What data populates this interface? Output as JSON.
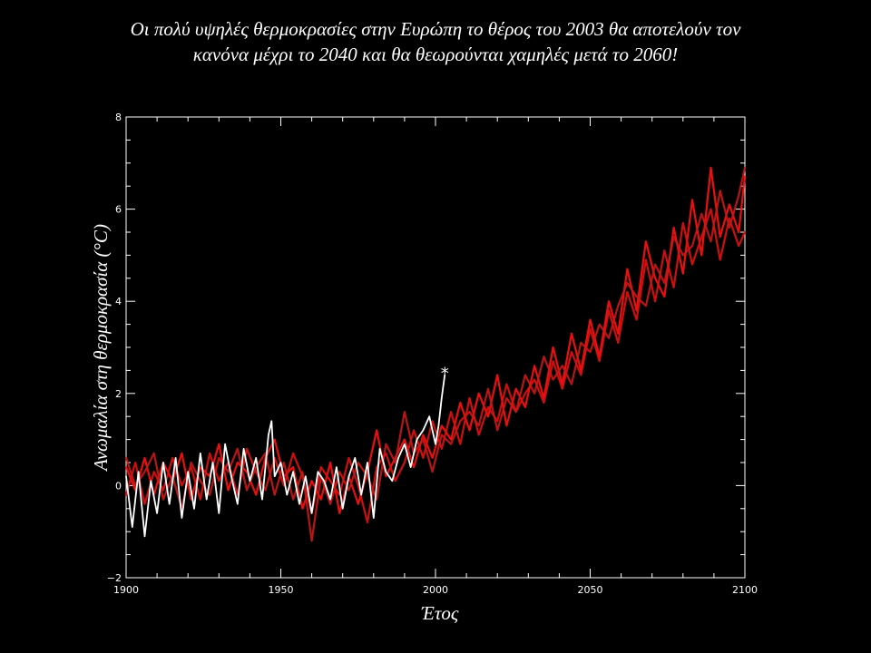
{
  "title": {
    "line1": "Οι πολύ υψηλές θερμοκρασίες στην Ευρώπη το θέρος του 2003 θα αποτελούν τον",
    "line2": "κανόνα μέχρι το 2040 και θα θεωρούνται χαμηλές μετά το 2060!"
  },
  "chart_data": {
    "type": "line",
    "title": "Οι πολύ υψηλές θερμοκρασίες στην Ευρώπη το θέρος του 2003 θα αποτελούν τον κανόνα μέχρι το 2040 και θα θεωρούνται χαμηλές μετά το 2060!",
    "xlabel": "Έτος",
    "ylabel": "Ανωμαλία στη θερμοκρασία (°C)",
    "xlim": [
      1900,
      2100
    ],
    "ylim": [
      -2,
      8
    ],
    "xticks": [
      1900,
      1950,
      2000,
      2050,
      2100
    ],
    "yticks": [
      -2,
      0,
      2,
      4,
      6,
      8
    ],
    "grid": false,
    "legend": "none",
    "background": "#000000",
    "series": [
      {
        "color": "#ffffff",
        "x": [
          1900,
          1902,
          1904,
          1906,
          1908,
          1910,
          1912,
          1914,
          1916,
          1918,
          1920,
          1922,
          1924,
          1926,
          1928,
          1930,
          1932,
          1934,
          1936,
          1938,
          1940,
          1942,
          1944,
          1945,
          1946,
          1947,
          1948,
          1950,
          1952,
          1954,
          1956,
          1958,
          1960,
          1962,
          1964,
          1966,
          1968,
          1970,
          1972,
          1974,
          1976,
          1978,
          1980,
          1982,
          1984,
          1986,
          1988,
          1990,
          1992,
          1994,
          1996,
          1998,
          2000,
          2001,
          2002,
          2003
        ],
        "y": [
          0.2,
          -0.9,
          0.3,
          -1.1,
          0.1,
          -0.6,
          0.5,
          -0.4,
          0.6,
          -0.7,
          0.3,
          -0.5,
          0.7,
          -0.3,
          0.5,
          -0.6,
          0.9,
          0.2,
          -0.4,
          0.8,
          0.1,
          0.6,
          -0.3,
          0.4,
          1.1,
          1.4,
          0.2,
          0.5,
          -0.2,
          0.3,
          -0.4,
          0.2,
          -0.6,
          0.3,
          0.1,
          -0.3,
          0.4,
          -0.5,
          0.2,
          0.6,
          -0.2,
          0.5,
          -0.7,
          0.8,
          0.3,
          0.1,
          0.6,
          0.9,
          0.4,
          1.0,
          1.2,
          1.5,
          0.9,
          1.3,
          1.9,
          2.4
        ]
      },
      {
        "color": "#ff1010",
        "x": [
          1900,
          1903,
          1906,
          1909,
          1912,
          1915,
          1918,
          1921,
          1924,
          1927,
          1930,
          1933,
          1936,
          1939,
          1942,
          1945,
          1948,
          1951,
          1954,
          1957,
          1960,
          1963,
          1966,
          1969,
          1972,
          1975,
          1978,
          1981,
          1984,
          1987,
          1990,
          1993,
          1996,
          1999,
          2002,
          2005,
          2008,
          2011,
          2014,
          2017,
          2020,
          2023,
          2026,
          2029,
          2032,
          2035,
          2038,
          2041,
          2044,
          2047,
          2050,
          2053,
          2056,
          2059,
          2062,
          2065,
          2068,
          2071,
          2074,
          2077,
          2080,
          2083,
          2086,
          2089,
          2092,
          2095,
          2098,
          2100
        ],
        "y": [
          0.4,
          -0.1,
          0.6,
          -0.2,
          0.5,
          0.1,
          0.7,
          -0.3,
          0.4,
          0.2,
          0.9,
          -0.1,
          0.5,
          0.3,
          -0.2,
          0.6,
          1.0,
          0.2,
          0.4,
          -0.5,
          0.1,
          -0.3,
          0.5,
          -0.6,
          0.2,
          -0.4,
          0.3,
          1.2,
          0.2,
          0.6,
          1.0,
          0.4,
          1.1,
          0.6,
          1.3,
          1.0,
          1.8,
          1.2,
          2.0,
          1.5,
          2.4,
          1.3,
          2.1,
          1.7,
          2.6,
          1.9,
          3.0,
          2.2,
          3.3,
          2.5,
          3.6,
          2.8,
          4.0,
          3.3,
          4.7,
          3.8,
          5.3,
          4.5,
          4.1,
          5.6,
          4.6,
          6.2,
          5.0,
          6.9,
          5.4,
          6.1,
          5.5,
          6.7
        ]
      },
      {
        "color": "#e01010",
        "x": [
          1900,
          1903,
          1906,
          1909,
          1912,
          1915,
          1918,
          1921,
          1924,
          1927,
          1930,
          1933,
          1936,
          1939,
          1942,
          1945,
          1948,
          1951,
          1954,
          1957,
          1960,
          1963,
          1966,
          1969,
          1972,
          1975,
          1978,
          1981,
          1984,
          1987,
          1990,
          1993,
          1996,
          1999,
          2002,
          2005,
          2008,
          2011,
          2014,
          2017,
          2020,
          2023,
          2026,
          2029,
          2032,
          2035,
          2038,
          2041,
          2044,
          2047,
          2050,
          2053,
          2056,
          2059,
          2062,
          2065,
          2068,
          2071,
          2074,
          2077,
          2080,
          2083,
          2086,
          2089,
          2092,
          2095,
          2098,
          2100
        ],
        "y": [
          -0.2,
          0.5,
          -0.4,
          0.3,
          -0.1,
          0.6,
          0.0,
          0.4,
          -0.3,
          0.7,
          0.1,
          0.5,
          -0.2,
          0.8,
          0.3,
          -0.1,
          0.6,
          0.0,
          0.7,
          0.2,
          -0.6,
          0.4,
          0.1,
          -0.2,
          0.6,
          0.0,
          -0.8,
          0.4,
          0.7,
          0.1,
          0.5,
          1.2,
          0.6,
          1.4,
          0.8,
          1.6,
          0.9,
          1.9,
          1.1,
          1.7,
          1.4,
          2.2,
          1.6,
          2.0,
          2.3,
          1.8,
          2.7,
          2.1,
          2.9,
          2.4,
          3.4,
          2.7,
          3.8,
          3.1,
          4.2,
          3.6,
          4.9,
          4.0,
          5.1,
          4.3,
          5.7,
          4.8,
          5.4,
          6.0,
          4.9,
          5.8,
          5.2,
          5.5
        ]
      },
      {
        "color": "#c81818",
        "x": [
          1900,
          1903,
          1906,
          1909,
          1912,
          1915,
          1918,
          1921,
          1924,
          1927,
          1930,
          1933,
          1936,
          1939,
          1942,
          1945,
          1948,
          1951,
          1954,
          1957,
          1960,
          1963,
          1966,
          1969,
          1972,
          1975,
          1978,
          1981,
          1984,
          1987,
          1990,
          1993,
          1996,
          1999,
          2002,
          2005,
          2008,
          2011,
          2014,
          2017,
          2020,
          2023,
          2026,
          2029,
          2032,
          2035,
          2038,
          2041,
          2044,
          2047,
          2050,
          2053,
          2056,
          2059,
          2062,
          2065,
          2068,
          2071,
          2074,
          2077,
          2080,
          2083,
          2086,
          2089,
          2092,
          2095,
          2098,
          2100
        ],
        "y": [
          0.6,
          0.0,
          0.3,
          0.7,
          -0.3,
          0.2,
          -0.5,
          0.5,
          0.1,
          -0.2,
          0.6,
          0.3,
          0.8,
          -0.1,
          0.4,
          0.7,
          -0.2,
          0.5,
          -0.3,
          0.3,
          -1.2,
          0.2,
          -0.4,
          0.3,
          -0.1,
          0.5,
          0.2,
          -0.3,
          0.9,
          0.5,
          1.6,
          0.7,
          1.0,
          0.3,
          1.1,
          0.9,
          1.4,
          1.6,
          1.3,
          2.1,
          1.2,
          1.9,
          1.6,
          2.4,
          2.0,
          2.8,
          2.3,
          2.6,
          2.2,
          3.1,
          2.9,
          3.5,
          3.2,
          3.9,
          4.4,
          4.1,
          3.9,
          4.8,
          4.4,
          5.4,
          5.0,
          5.2,
          5.9,
          5.3,
          6.4,
          5.6,
          6.3,
          6.9
        ]
      }
    ],
    "annotations": [
      {
        "text": "*",
        "x": 2003,
        "y": 2.5,
        "color": "#ffffff"
      }
    ]
  }
}
